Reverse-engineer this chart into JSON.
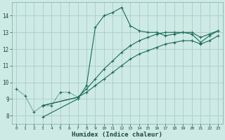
{
  "xlabel": "Humidex (Indice chaleur)",
  "background_color": "#ceeae4",
  "grid_color": "#aacccc",
  "line_color": "#1a6b5a",
  "xlim": [
    -0.5,
    23.5
  ],
  "ylim": [
    7.5,
    14.8
  ],
  "yticks": [
    8,
    9,
    10,
    11,
    12,
    13,
    14
  ],
  "xticks": [
    0,
    1,
    2,
    3,
    4,
    5,
    6,
    7,
    8,
    9,
    10,
    11,
    12,
    13,
    14,
    15,
    16,
    17,
    18,
    19,
    20,
    21,
    22,
    23
  ],
  "series": [
    {
      "x": [
        0,
        1,
        2,
        3,
        4,
        5,
        6,
        7
      ],
      "y": [
        9.6,
        9.2,
        8.2,
        8.6,
        8.6,
        9.4,
        9.4,
        9.1
      ],
      "style": "dotted"
    },
    {
      "x": [
        3,
        7,
        8,
        9,
        10,
        11,
        12,
        13,
        14,
        15,
        16,
        17,
        18,
        19,
        20,
        21,
        22,
        23
      ],
      "y": [
        7.9,
        9.0,
        9.8,
        13.3,
        14.0,
        14.2,
        14.5,
        13.4,
        13.1,
        13.0,
        13.0,
        12.8,
        12.9,
        13.0,
        12.9,
        12.4,
        12.8,
        13.1
      ],
      "style": "solid"
    },
    {
      "x": [
        3,
        7,
        8,
        9,
        10,
        11,
        12,
        13,
        14,
        15,
        16,
        17,
        18,
        19,
        20,
        21,
        22,
        23
      ],
      "y": [
        8.6,
        9.1,
        9.6,
        10.2,
        10.8,
        11.3,
        11.8,
        12.2,
        12.5,
        12.7,
        12.9,
        13.0,
        13.0,
        13.0,
        13.0,
        12.7,
        12.9,
        13.1
      ],
      "style": "solid"
    },
    {
      "x": [
        3,
        7,
        8,
        9,
        10,
        11,
        12,
        13,
        14,
        15,
        16,
        17,
        18,
        19,
        20,
        21,
        22,
        23
      ],
      "y": [
        8.6,
        9.1,
        9.4,
        9.8,
        10.2,
        10.6,
        11.0,
        11.4,
        11.7,
        11.9,
        12.1,
        12.3,
        12.4,
        12.5,
        12.5,
        12.3,
        12.5,
        12.8
      ],
      "style": "solid"
    }
  ]
}
